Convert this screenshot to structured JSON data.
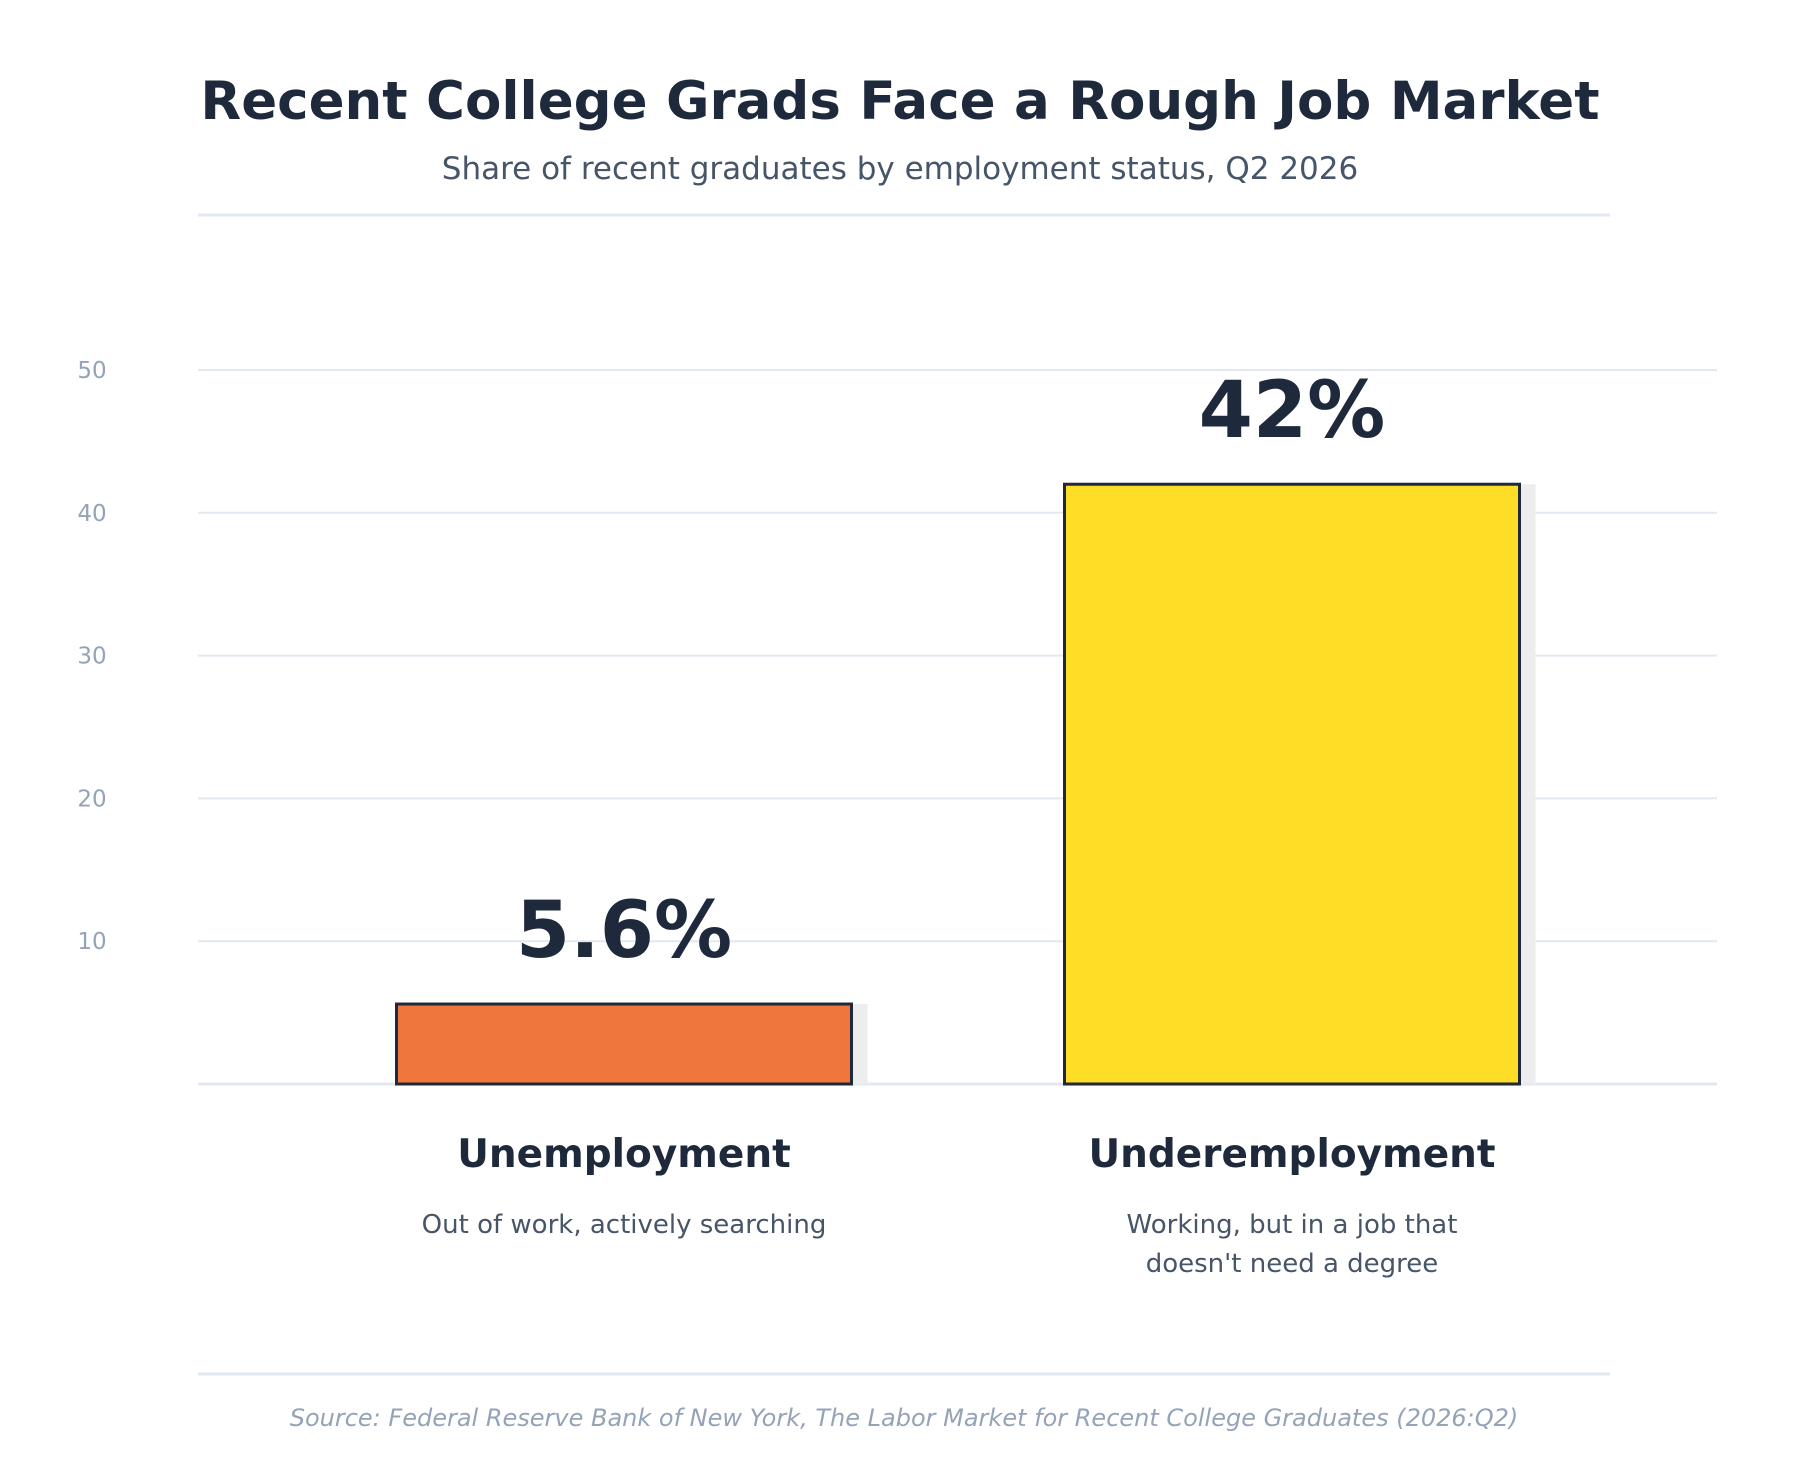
{
  "chart_data": {
    "type": "bar",
    "title": "Recent College Grads Face a Rough Job Market",
    "subtitle": "Share of recent graduates by employment status, Q2 2026",
    "categories": [
      "Unemployment",
      "Underemployment"
    ],
    "values": [
      5.6,
      42
    ],
    "value_labels": [
      "5.6%",
      "42%"
    ],
    "descriptions": [
      [
        "Out of work, actively searching"
      ],
      [
        "Working, but in a job that",
        "doesn't need a degree"
      ]
    ],
    "colors": [
      "#ef773c",
      "#fedd26"
    ],
    "ylim": [
      0,
      50
    ],
    "y_ticks": [
      10,
      20,
      30,
      40,
      50
    ],
    "grid": true,
    "xlabel": "",
    "ylabel": ""
  },
  "source": "Source: Federal Reserve Bank of New York, The Labor Market for Recent College Graduates (2026:Q2)"
}
